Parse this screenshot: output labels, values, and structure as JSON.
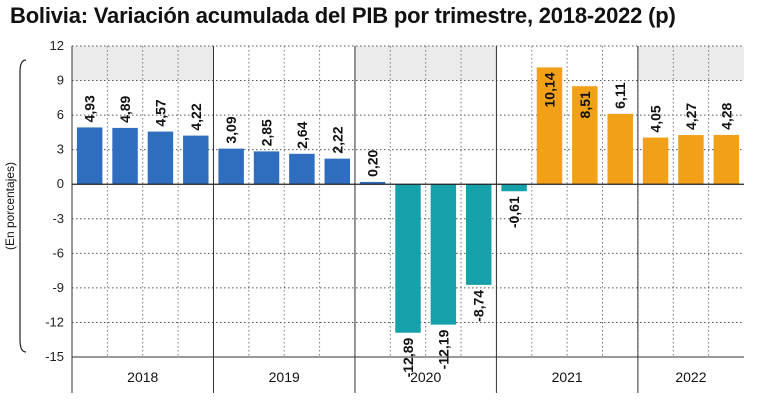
{
  "chart_data": {
    "type": "bar",
    "title": "Bolivia: Variación acumulada del PIB por trimestre, 2018-2022 (p)",
    "ylabel": "(En porcentajes)",
    "xlabel": "",
    "ylim": [
      -15,
      12
    ],
    "yticks": [
      12,
      9,
      6,
      3,
      0,
      -3,
      -6,
      -9,
      -12,
      -15
    ],
    "grid": true,
    "years": [
      "2018",
      "2019",
      "2020",
      "2021",
      "2022"
    ],
    "categories": [
      "2018-T1",
      "2018-T2",
      "2018-T3",
      "2018-T4",
      "2019-T1",
      "2019-T2",
      "2019-T3",
      "2019-T4",
      "2020-T1",
      "2020-T2",
      "2020-T3",
      "2020-T4",
      "2021-T1",
      "2021-T2",
      "2021-T3",
      "2021-T4",
      "2022-T1",
      "2022-T2",
      "2022-T3"
    ],
    "values": [
      4.93,
      4.89,
      4.57,
      4.22,
      3.09,
      2.85,
      2.64,
      2.22,
      0.2,
      -12.89,
      -12.19,
      -8.74,
      -0.61,
      10.14,
      8.51,
      6.11,
      4.05,
      4.27,
      4.28
    ],
    "labels": [
      "4,93",
      "4,89",
      "4,57",
      "4,22",
      "3,09",
      "2,85",
      "2,64",
      "2,22",
      "0,20",
      "-12,89",
      "-12,19",
      "-8,74",
      "-0,61",
      "10,14",
      "8,51",
      "6,11",
      "4,05",
      "4,27",
      "4,28"
    ],
    "colors": {
      "blue": "#2f6dbe",
      "teal": "#16a1aa",
      "orange": "#f2a018",
      "band": "#ebebeb",
      "grid": "#555555"
    },
    "bar_color_keys": [
      "blue",
      "blue",
      "blue",
      "blue",
      "blue",
      "blue",
      "blue",
      "blue",
      "blue",
      "teal",
      "teal",
      "teal",
      "teal",
      "orange",
      "orange",
      "orange",
      "orange",
      "orange",
      "orange"
    ]
  }
}
